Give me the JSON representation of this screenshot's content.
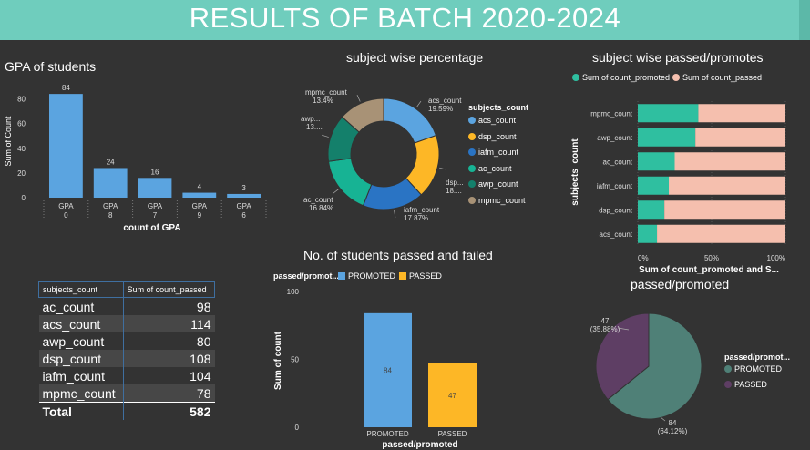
{
  "header": {
    "title": "RESULTS OF BATCH 2020-2024"
  },
  "colors": {
    "banner": "#6fcdbd",
    "bar_blue": "#5ba4e0",
    "teal": "#2fbfa0",
    "salmon": "#f5bfae",
    "yellow": "#fdb726",
    "promoted_pie": "#4f8077",
    "passed_pie": "#5e3e64"
  },
  "chart_data": [
    {
      "type": "bar",
      "title": "GPA of students",
      "xlabel": "count of GPA",
      "ylabel": "Sum of Count",
      "categories": [
        "GPA 0",
        "GPA 8",
        "GPA 7",
        "GPA 9",
        "GPA 6"
      ],
      "category_lines": [
        [
          "GPA",
          "0"
        ],
        [
          "GPA",
          "8"
        ],
        [
          "GPA",
          "7"
        ],
        [
          "GPA",
          "9"
        ],
        [
          "GPA",
          "6"
        ]
      ],
      "values": [
        84,
        24,
        16,
        4,
        3
      ],
      "value_labels": [
        "84",
        "24",
        "16",
        "4",
        "3"
      ],
      "yticks": [
        "0",
        "20",
        "40",
        "60",
        "80"
      ],
      "ylim": [
        0,
        90
      ]
    },
    {
      "type": "pie",
      "title": "subject wise percentage",
      "legend_title": "subjects_count",
      "labels": [
        "acs_count",
        "dsp_count",
        "iafm_count",
        "ac_count",
        "awp_count",
        "mpmc_count"
      ],
      "values": [
        19.59,
        18.56,
        17.87,
        16.84,
        13.75,
        13.4
      ],
      "slice_labels": [
        [
          "acs_count",
          "19.59%"
        ],
        [
          "dsp...",
          "18...."
        ],
        [
          "iafm_count",
          "17.87%"
        ],
        [
          "ac_count",
          "16.84%"
        ],
        [
          "awp...",
          "13...."
        ],
        [
          "mpmc_count",
          "13.4%"
        ]
      ],
      "colors": [
        "#5ba4e0",
        "#fdb726",
        "#2a74c4",
        "#17b394",
        "#14806b",
        "#a89276"
      ]
    },
    {
      "type": "bar",
      "orientation": "horizontal-stacked-100",
      "title": "subject wise passed/promotes",
      "xlabel": "Sum of count_promoted and S...",
      "ylabel": "subjects_count",
      "categories": [
        "mpmc_count",
        "awp_count",
        "ac_count",
        "iafm_count",
        "dsp_count",
        "acs_count"
      ],
      "series": [
        {
          "name": "Sum of count_promoted",
          "values": [
            41,
            39,
            25,
            21,
            18,
            13
          ]
        },
        {
          "name": "Sum of count_passed",
          "values": [
            59,
            61,
            75,
            79,
            82,
            87
          ]
        }
      ],
      "xticks": [
        "0%",
        "50%",
        "100%"
      ],
      "legend": "top-left"
    },
    {
      "type": "table",
      "columns": [
        "subjects_count",
        "Sum of count_passed"
      ],
      "rows": [
        [
          "ac_count",
          "98"
        ],
        [
          "acs_count",
          "114"
        ],
        [
          "awp_count",
          "80"
        ],
        [
          "dsp_count",
          "108"
        ],
        [
          "iafm_count",
          "104"
        ],
        [
          "mpmc_count",
          "78"
        ]
      ],
      "total": [
        "Total",
        "582"
      ]
    },
    {
      "type": "bar",
      "title": "No. of students passed and failed",
      "legend_title": "passed/promot...",
      "xlabel": "passed/promoted",
      "ylabel": "Sum of count",
      "categories": [
        "PROMOTED",
        "PASSED"
      ],
      "values": [
        84,
        47
      ],
      "value_labels": [
        "84",
        "47"
      ],
      "colors": [
        "#5ba4e0",
        "#fdb726"
      ],
      "yticks": [
        "0",
        "50",
        "100"
      ],
      "ylim": [
        0,
        100
      ]
    },
    {
      "type": "pie",
      "title": "passed/promoted",
      "legend_title": "passed/promot...",
      "labels": [
        "PROMOTED",
        "PASSED"
      ],
      "values": [
        84,
        47
      ],
      "percent_labels": [
        "84\n(64.12%)",
        "47\n(35.88%)"
      ],
      "colors": [
        "#4f8077",
        "#5e3e64"
      ]
    }
  ]
}
